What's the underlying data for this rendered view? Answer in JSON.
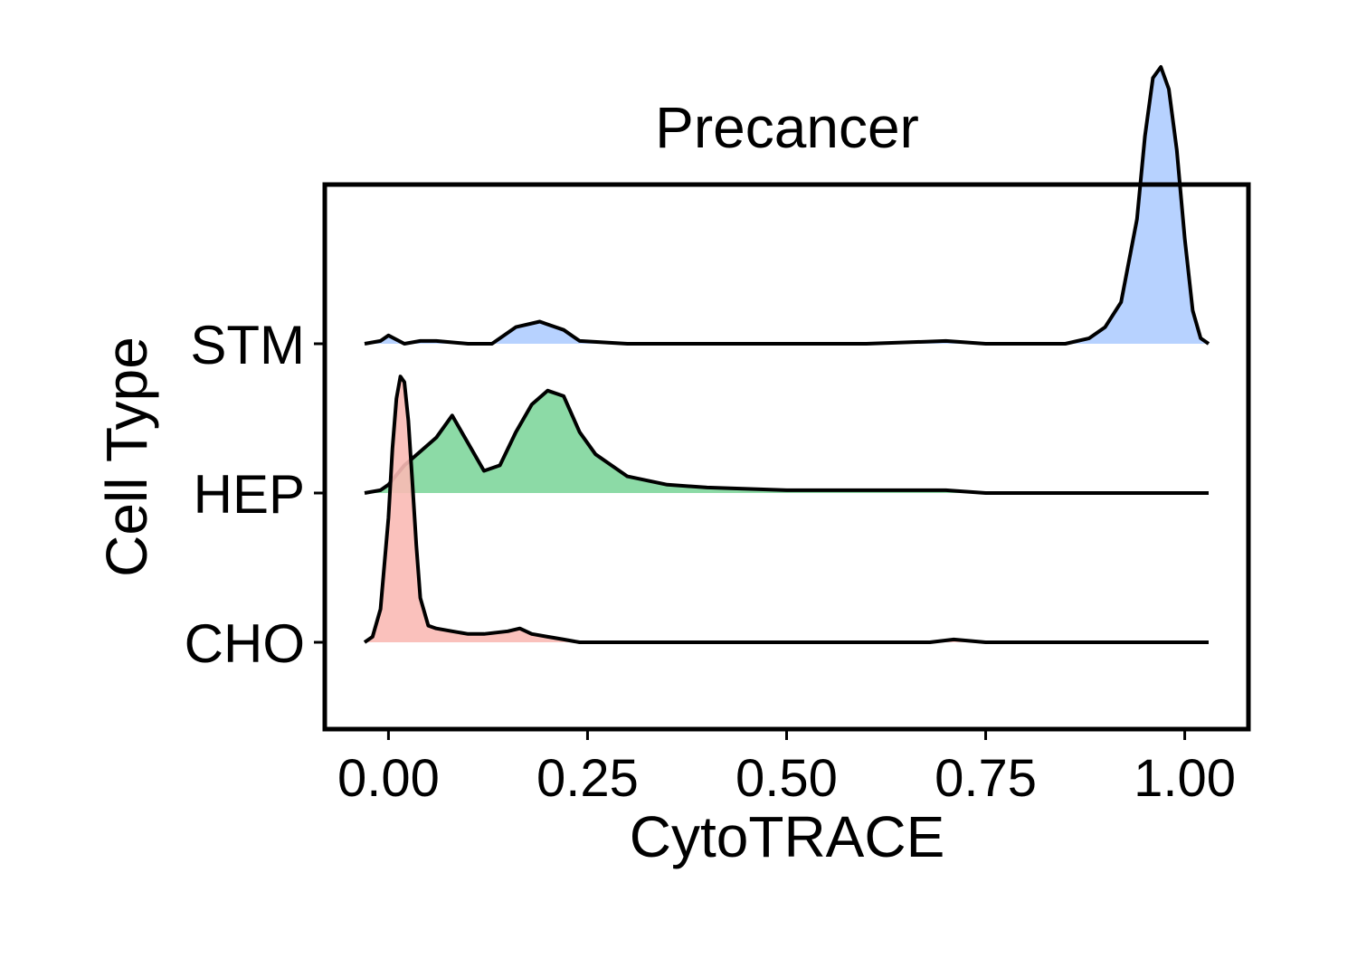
{
  "chart_data": {
    "type": "ridgeline",
    "title": "Precancer",
    "xlabel": "CytoTRACE",
    "ylabel": "Cell Type",
    "xlim": [
      -0.08,
      1.08
    ],
    "xticks": [
      0.0,
      0.25,
      0.5,
      0.75,
      1.0
    ],
    "xtick_labels": [
      "0.00",
      "0.25",
      "0.50",
      "0.75",
      "1.00"
    ],
    "categories": [
      "CHO",
      "HEP",
      "STM"
    ],
    "density_max": 1.0,
    "series": [
      {
        "name": "CHO",
        "color": "#F8766D",
        "fill": "#F9BAB5",
        "x": [
          -0.03,
          -0.02,
          -0.01,
          0.0,
          0.005,
          0.01,
          0.015,
          0.02,
          0.025,
          0.03,
          0.035,
          0.04,
          0.05,
          0.06,
          0.08,
          0.1,
          0.12,
          0.15,
          0.165,
          0.18,
          0.2,
          0.22,
          0.24,
          0.3,
          0.4,
          0.5,
          0.6,
          0.68,
          0.71,
          0.75,
          0.85,
          0.95,
          1.03
        ],
        "y": [
          0.0,
          0.02,
          0.12,
          0.45,
          0.7,
          0.88,
          0.96,
          0.94,
          0.8,
          0.58,
          0.35,
          0.16,
          0.06,
          0.05,
          0.04,
          0.03,
          0.03,
          0.04,
          0.05,
          0.03,
          0.02,
          0.01,
          0.0,
          0.0,
          0.0,
          0.0,
          0.0,
          0.0,
          0.01,
          0.0,
          0.0,
          0.0,
          0.0
        ]
      },
      {
        "name": "HEP",
        "color": "#00BA38",
        "fill": "#80D69C",
        "x": [
          -0.03,
          -0.01,
          0.0,
          0.02,
          0.04,
          0.06,
          0.08,
          0.1,
          0.12,
          0.14,
          0.16,
          0.18,
          0.2,
          0.22,
          0.24,
          0.26,
          0.3,
          0.35,
          0.4,
          0.5,
          0.6,
          0.7,
          0.75,
          0.85,
          1.03
        ],
        "y": [
          0.0,
          0.01,
          0.03,
          0.1,
          0.15,
          0.2,
          0.28,
          0.18,
          0.08,
          0.1,
          0.22,
          0.32,
          0.37,
          0.35,
          0.22,
          0.14,
          0.06,
          0.03,
          0.02,
          0.01,
          0.01,
          0.01,
          0.0,
          0.0,
          0.0
        ]
      },
      {
        "name": "STM",
        "color": "#619CFF",
        "fill": "#AFCDFF",
        "x": [
          -0.03,
          -0.01,
          0.0,
          0.02,
          0.04,
          0.06,
          0.1,
          0.13,
          0.16,
          0.19,
          0.2,
          0.22,
          0.24,
          0.3,
          0.4,
          0.5,
          0.6,
          0.7,
          0.75,
          0.85,
          0.88,
          0.9,
          0.92,
          0.94,
          0.95,
          0.96,
          0.97,
          0.98,
          0.99,
          1.0,
          1.01,
          1.02,
          1.03
        ],
        "y": [
          0.0,
          0.01,
          0.03,
          0.0,
          0.01,
          0.01,
          0.0,
          0.0,
          0.06,
          0.08,
          0.07,
          0.05,
          0.01,
          0.0,
          0.0,
          0.0,
          0.0,
          0.01,
          0.0,
          0.0,
          0.02,
          0.06,
          0.15,
          0.45,
          0.75,
          0.96,
          1.0,
          0.92,
          0.7,
          0.38,
          0.12,
          0.02,
          0.0
        ]
      }
    ]
  }
}
